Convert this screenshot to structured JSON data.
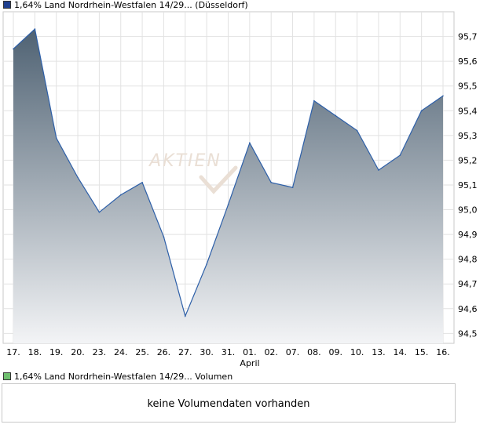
{
  "legend": {
    "price_label": "1,64% Land Nordrhein-Westfalen 14/29... (Düsseldorf)",
    "volume_label": "1,64% Land Nordrhein-Westfalen 14/29... Volumen",
    "price_color": "#1f3f8f",
    "volume_color": "#6fbf6f"
  },
  "watermark": "AKTIEN",
  "volume_panel": {
    "message": "keine Volumendaten vorhanden"
  },
  "chart_data": {
    "type": "area",
    "categories": [
      "17.",
      "18.",
      "19.",
      "20.",
      "23.",
      "24.",
      "25.",
      "26.",
      "27.",
      "30.",
      "31.",
      "01.",
      "02.",
      "07.",
      "08.",
      "09.",
      "10.",
      "13.",
      "14.",
      "15.",
      "16."
    ],
    "month_label": {
      "at": "01.",
      "text": "April"
    },
    "values": [
      95.65,
      95.73,
      95.29,
      95.13,
      94.99,
      95.06,
      95.11,
      94.89,
      94.57,
      94.78,
      95.02,
      95.27,
      95.11,
      95.09,
      95.44,
      95.38,
      95.32,
      95.16,
      95.22,
      95.4,
      95.46
    ],
    "y_ticks": [
      "94,5",
      "94,6",
      "94,7",
      "94,8",
      "94,9",
      "95,0",
      "95,1",
      "95,2",
      "95,3",
      "95,4",
      "95,5",
      "95,6",
      "95,7"
    ],
    "ylim": [
      94.46,
      95.8
    ],
    "grid": true,
    "line_color": "#2d5fa8",
    "fill_top_color": "#4f6273",
    "fill_bottom_color": "#f3f4f6"
  }
}
